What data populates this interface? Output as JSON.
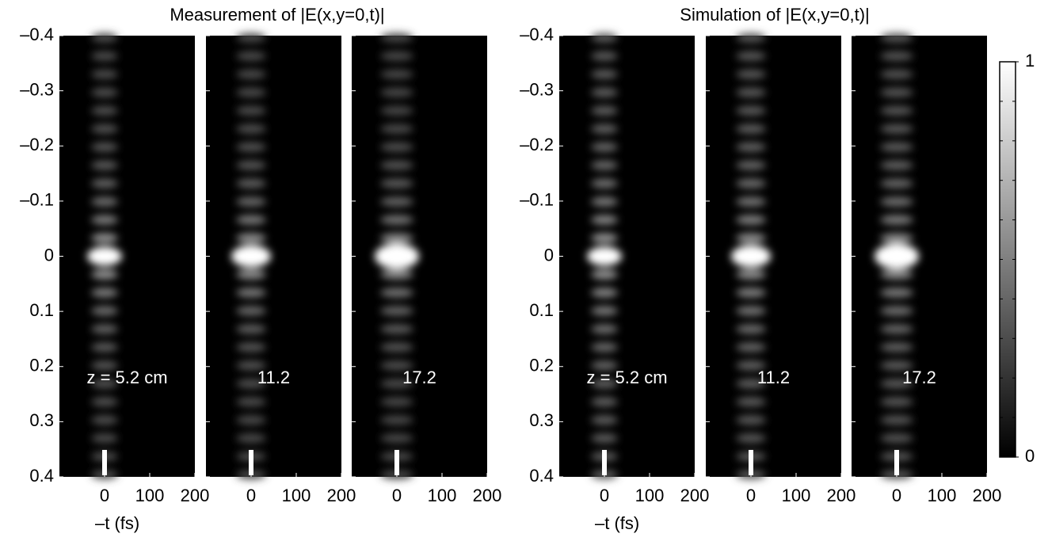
{
  "chart_data": [
    {
      "type": "heatmap",
      "title": "Measurement of |E(x,y=0,t)|",
      "xlabel": "–t (fs)",
      "panels": [
        "z = 5.2 cm",
        "11.2",
        "17.2"
      ],
      "xlim": [
        -100,
        200
      ],
      "xticks": [
        0,
        100,
        200
      ],
      "ylim": [
        -0.4,
        0.4
      ],
      "yreverse": true,
      "yticks": [
        {
          "value": -0.4,
          "label": "–0.4"
        },
        {
          "value": -0.3,
          "label": "–0.3"
        },
        {
          "value": -0.2,
          "label": "–0.2"
        },
        {
          "value": -0.1,
          "label": "–0.1"
        },
        0,
        0.1,
        0.2,
        0.3,
        0.4
      ]
    },
    {
      "type": "heatmap",
      "title": "Simulation of |E(x,y=0,t)|",
      "xlabel": "–t (fs)",
      "panels": [
        "z = 5.2 cm",
        "11.2",
        "17.2"
      ],
      "xlim": [
        -100,
        200
      ],
      "xticks": [
        0,
        100,
        200
      ],
      "ylim": [
        -0.4,
        0.4
      ],
      "yreverse": true,
      "yticks": [
        {
          "value": -0.4,
          "label": "–0.4"
        },
        {
          "value": -0.3,
          "label": "–0.3"
        },
        {
          "value": -0.2,
          "label": "–0.2"
        },
        {
          "value": -0.1,
          "label": "–0.1"
        },
        0,
        0.1,
        0.2,
        0.3,
        0.4
      ],
      "colorbar": {
        "clim": [
          0,
          1
        ],
        "ticks": [
          0,
          1
        ]
      }
    }
  ]
}
